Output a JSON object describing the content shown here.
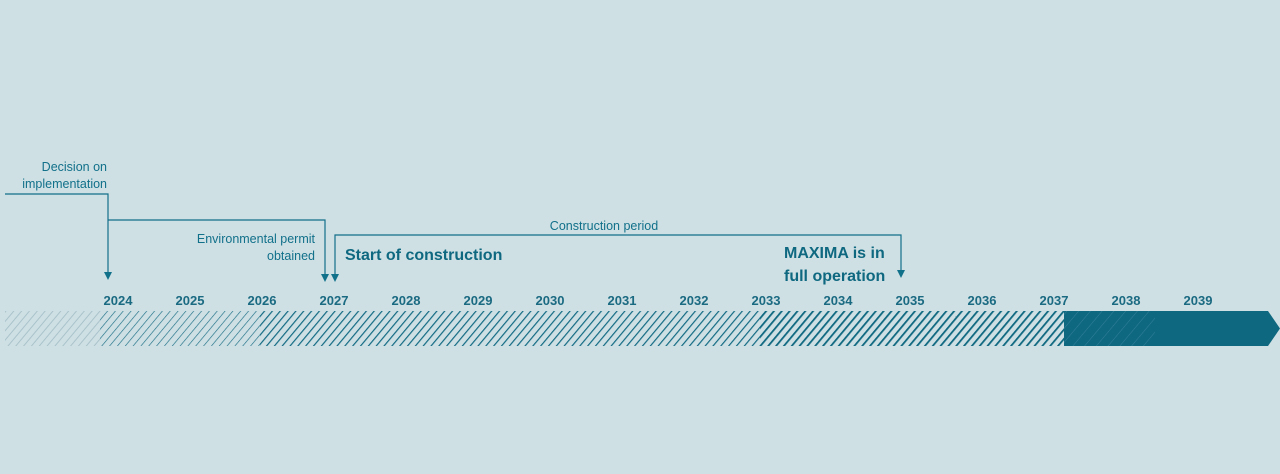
{
  "colors": {
    "background": "#cfe0e4",
    "accent": "#0e6880"
  },
  "milestones": {
    "decision": [
      "Decision on",
      "implementation"
    ],
    "permit": [
      "Environmental permit",
      "obtained"
    ],
    "construction_period": "Construction period",
    "start": "Start of construction",
    "full_operation": [
      "MAXIMA is in",
      "full operation"
    ]
  },
  "years": [
    "2024",
    "2025",
    "2026",
    "2027",
    "2028",
    "2029",
    "2030",
    "2031",
    "2032",
    "2033",
    "2034",
    "2035",
    "2036",
    "2037",
    "2038",
    "2039"
  ]
}
